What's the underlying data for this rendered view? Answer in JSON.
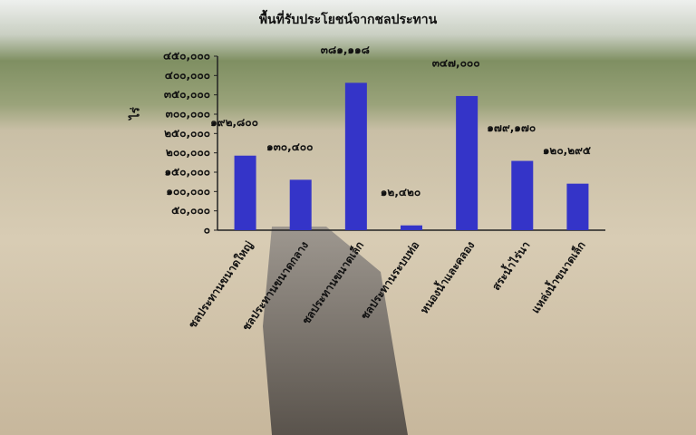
{
  "chart_data": {
    "type": "bar",
    "title": "พื้นที่รับประโยชน์จากชลประทาน",
    "y_label": "ไร่",
    "categories": [
      "ชลประทานขนาดใหญ่",
      "ชลประทานขนาดกลาง",
      "ชลประทานขนาดเล็ก",
      "ชลประทานระบบท่อ",
      "หนองน้ำและคลอง",
      "สระน้ำไร่นา",
      "แหล่งน้ำขนาดเล็ก"
    ],
    "values": [
      192800,
      130400,
      381118,
      12420,
      347000,
      179170,
      120295
    ],
    "value_labels": [
      "๑๙๒,๘๐๐",
      "๑๓๐,๔๐๐",
      "๓๘๑,๑๑๘",
      "๑๒,๔๒๐",
      "๓๔๗,๐๐๐",
      "๑๗๙,๑๗๐",
      "๑๒๐,๒๙๕"
    ],
    "color": "#3434c8",
    "ylim": [
      0,
      450000
    ],
    "yticks": [
      {
        "value": 0,
        "label": "๐"
      },
      {
        "value": 50000,
        "label": "๕๐,๐๐๐"
      },
      {
        "value": 100000,
        "label": "๑๐๐,๐๐๐"
      },
      {
        "value": 150000,
        "label": "๑๕๐,๐๐๐"
      },
      {
        "value": 200000,
        "label": "๒๐๐,๐๐๐"
      },
      {
        "value": 250000,
        "label": "๒๕๐,๐๐๐"
      },
      {
        "value": 300000,
        "label": "๓๐๐,๐๐๐"
      },
      {
        "value": 350000,
        "label": "๓๕๐,๐๐๐"
      },
      {
        "value": 400000,
        "label": "๔๐๐,๐๐๐"
      },
      {
        "value": 450000,
        "label": "๔๕๐,๐๐๐"
      }
    ],
    "grid": false
  }
}
